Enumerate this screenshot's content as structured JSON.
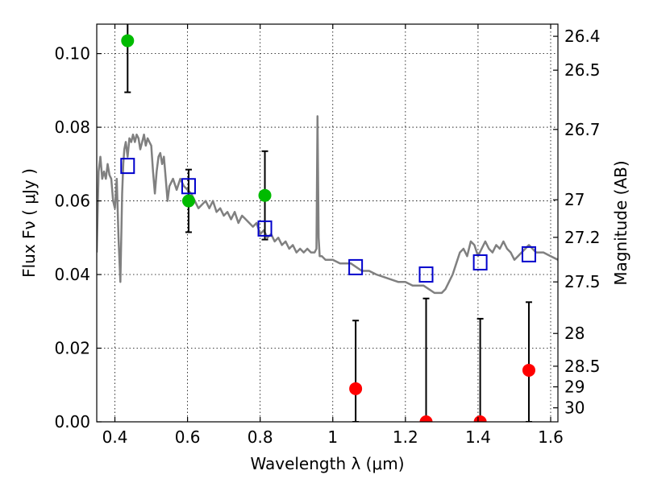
{
  "chart_data": {
    "type": "scatter",
    "title": "",
    "xlabel": "Wavelength  λ (μm)",
    "ylabel": "Flux  Fν  ( μJy )",
    "ylabel_right": "Magnitude (AB)",
    "xlim": [
      0.35,
      1.62
    ],
    "ylim": [
      0.0,
      0.108
    ],
    "grid": true,
    "x_ticks": [
      0.4,
      0.6,
      0.8,
      1.0,
      1.2,
      1.4,
      1.6
    ],
    "x_tick_labels": [
      "0.4",
      "0.6",
      "0.8",
      "1",
      "1.2",
      "1.4",
      "1.6"
    ],
    "y_ticks": [
      0.0,
      0.02,
      0.04,
      0.06,
      0.08,
      0.1
    ],
    "y_tick_labels": [
      "0.00",
      "0.02",
      "0.04",
      "0.06",
      "0.08",
      "0.10"
    ],
    "right_ticks": [
      {
        "label": "26.4",
        "flux": 0.1047
      },
      {
        "label": "26.5",
        "flux": 0.0955
      },
      {
        "label": "26.7",
        "flux": 0.0794
      },
      {
        "label": "27",
        "flux": 0.0603
      },
      {
        "label": "27.2",
        "flux": 0.0501
      },
      {
        "label": "27.5",
        "flux": 0.038
      },
      {
        "label": "28",
        "flux": 0.024
      },
      {
        "label": "28.5",
        "flux": 0.0151
      },
      {
        "label": "29",
        "flux": 0.0095
      },
      {
        "label": "30",
        "flux": 0.0038
      }
    ],
    "model_spectrum": {
      "color": "#808080",
      "x": [
        0.35,
        0.355,
        0.36,
        0.365,
        0.37,
        0.375,
        0.38,
        0.385,
        0.39,
        0.395,
        0.4,
        0.405,
        0.41,
        0.415,
        0.42,
        0.423,
        0.426,
        0.43,
        0.435,
        0.44,
        0.445,
        0.45,
        0.455,
        0.46,
        0.465,
        0.47,
        0.475,
        0.48,
        0.485,
        0.49,
        0.495,
        0.5,
        0.505,
        0.51,
        0.515,
        0.52,
        0.525,
        0.53,
        0.535,
        0.54,
        0.545,
        0.55,
        0.56,
        0.57,
        0.58,
        0.59,
        0.6,
        0.61,
        0.62,
        0.63,
        0.64,
        0.65,
        0.66,
        0.67,
        0.68,
        0.69,
        0.7,
        0.71,
        0.72,
        0.73,
        0.74,
        0.75,
        0.76,
        0.77,
        0.78,
        0.79,
        0.8,
        0.81,
        0.82,
        0.83,
        0.84,
        0.85,
        0.86,
        0.87,
        0.88,
        0.89,
        0.9,
        0.91,
        0.92,
        0.93,
        0.94,
        0.95,
        0.955,
        0.958,
        0.961,
        0.964,
        0.97,
        0.98,
        0.99,
        1.0,
        1.02,
        1.05,
        1.08,
        1.1,
        1.12,
        1.15,
        1.18,
        1.2,
        1.22,
        1.25,
        1.28,
        1.3,
        1.31,
        1.32,
        1.33,
        1.34,
        1.35,
        1.36,
        1.37,
        1.38,
        1.39,
        1.4,
        1.41,
        1.42,
        1.43,
        1.44,
        1.45,
        1.46,
        1.47,
        1.48,
        1.49,
        1.5,
        1.51,
        1.52,
        1.53,
        1.54,
        1.55,
        1.56,
        1.58,
        1.6,
        1.62
      ],
      "y": [
        0.046,
        0.068,
        0.072,
        0.066,
        0.068,
        0.066,
        0.07,
        0.067,
        0.066,
        0.06,
        0.058,
        0.066,
        0.05,
        0.038,
        0.062,
        0.07,
        0.074,
        0.076,
        0.072,
        0.077,
        0.076,
        0.078,
        0.076,
        0.078,
        0.077,
        0.074,
        0.076,
        0.078,
        0.075,
        0.077,
        0.076,
        0.075,
        0.068,
        0.062,
        0.068,
        0.072,
        0.073,
        0.07,
        0.072,
        0.066,
        0.06,
        0.064,
        0.066,
        0.063,
        0.066,
        0.064,
        0.063,
        0.062,
        0.06,
        0.058,
        0.059,
        0.06,
        0.058,
        0.06,
        0.057,
        0.058,
        0.056,
        0.057,
        0.055,
        0.057,
        0.054,
        0.056,
        0.055,
        0.054,
        0.053,
        0.054,
        0.051,
        0.052,
        0.05,
        0.051,
        0.049,
        0.05,
        0.048,
        0.049,
        0.047,
        0.048,
        0.046,
        0.047,
        0.046,
        0.047,
        0.046,
        0.046,
        0.047,
        0.083,
        0.05,
        0.045,
        0.045,
        0.044,
        0.044,
        0.044,
        0.043,
        0.043,
        0.041,
        0.041,
        0.04,
        0.039,
        0.038,
        0.038,
        0.037,
        0.037,
        0.035,
        0.035,
        0.036,
        0.038,
        0.04,
        0.043,
        0.046,
        0.047,
        0.045,
        0.049,
        0.048,
        0.045,
        0.047,
        0.049,
        0.047,
        0.046,
        0.048,
        0.047,
        0.049,
        0.047,
        0.046,
        0.044,
        0.045,
        0.046,
        0.047,
        0.048,
        0.047,
        0.046,
        0.046,
        0.045,
        0.044
      ]
    },
    "series": [
      {
        "kind": "model_photometry",
        "marker": "open-square",
        "color": "#0000cc",
        "x": [
          0.435,
          0.603,
          0.813,
          1.063,
          1.257,
          1.406,
          1.54
        ],
        "y": [
          0.0695,
          0.064,
          0.0525,
          0.042,
          0.04,
          0.0433,
          0.0455
        ]
      },
      {
        "kind": "detections",
        "marker": "filled-circle",
        "color": "#00bb00",
        "x": [
          0.435,
          0.603,
          0.813
        ],
        "y": [
          0.1035,
          0.06,
          0.0615
        ],
        "yerr_low": [
          0.0895,
          0.0515,
          0.0495
        ],
        "yerr_high": [
          0.1085,
          0.0685,
          0.0735
        ]
      },
      {
        "kind": "non_detections",
        "marker": "filled-circle",
        "color": "#ff0000",
        "x": [
          1.063,
          1.257,
          1.406,
          1.54
        ],
        "y": [
          0.009,
          0.0,
          0.0,
          0.014
        ],
        "yerr_low": [
          0.0,
          0.0,
          0.0,
          0.0
        ],
        "yerr_high": [
          0.0275,
          0.0335,
          0.028,
          0.0325
        ]
      }
    ]
  }
}
